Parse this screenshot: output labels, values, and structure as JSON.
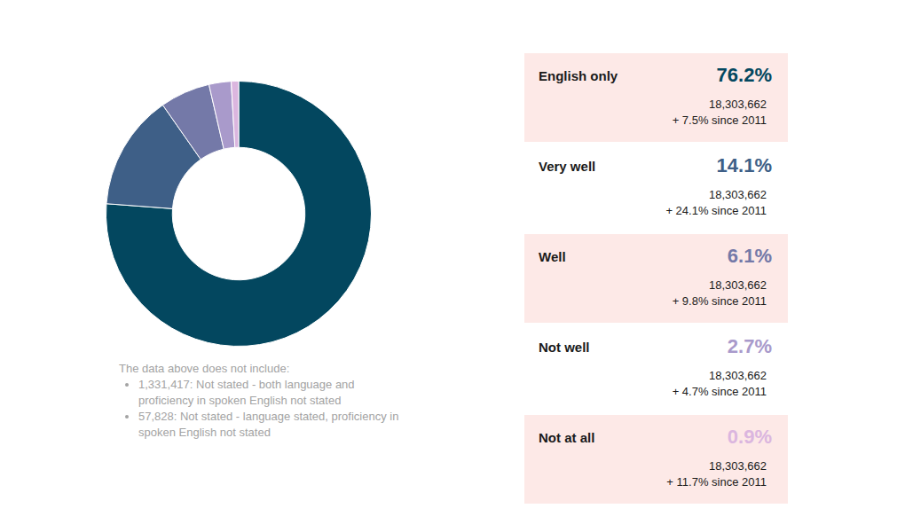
{
  "chart_data": {
    "type": "doughnut",
    "categories": [
      "English only",
      "Very well",
      "Well",
      "Not well",
      "Not at all"
    ],
    "values": [
      76.2,
      14.1,
      6.1,
      2.7,
      0.9
    ],
    "value_labels": [
      "76.2%",
      "14.1%",
      "6.1%",
      "2.7%",
      "0.9%"
    ],
    "colors": [
      "#03475f",
      "#3e5f87",
      "#7479a8",
      "#a99acb",
      "#dbb6df"
    ],
    "counts": [
      "18,303,662",
      "18,303,662",
      "18,303,662",
      "18,303,662",
      "18,303,662"
    ],
    "changes": [
      "+ 7.5% since 2011",
      "+ 24.1% since 2011",
      "+ 9.8% since 2011",
      "+ 4.7% since 2011",
      "+ 11.7% since 2011"
    ],
    "legend": false,
    "notes": {
      "heading": "The data above does not include:",
      "items": [
        "1,331,417: Not stated - both language and proficiency in spoken English not stated",
        "57,828: Not stated - language stated, proficiency in spoken English not stated"
      ]
    }
  }
}
